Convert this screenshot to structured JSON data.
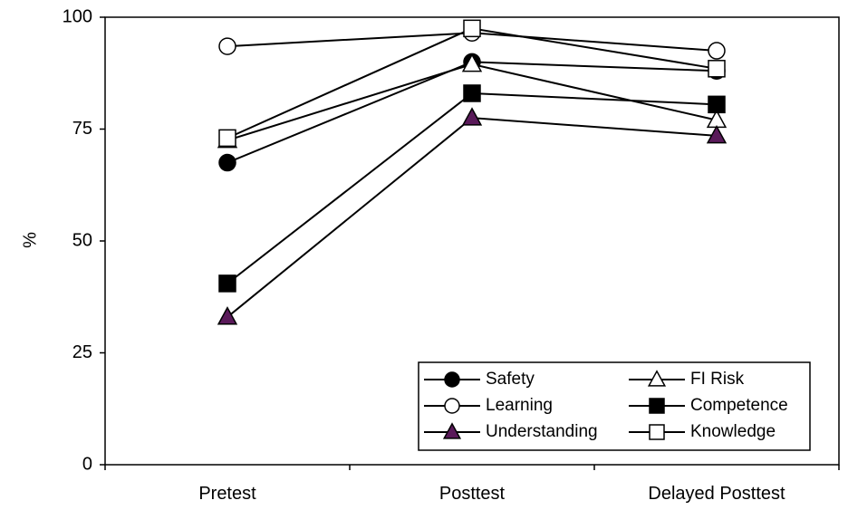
{
  "chart_data": {
    "type": "line",
    "categories": [
      "Pretest",
      "Posttest",
      "Delayed Posttest"
    ],
    "ylabel": "%",
    "xlabel": "",
    "ylim": [
      0,
      100
    ],
    "yticks": [
      0,
      25,
      50,
      75,
      100
    ],
    "grid": false,
    "legend_position": "bottom-right",
    "series": [
      {
        "name": "Safety",
        "marker": "circle",
        "fill": "#000000",
        "values": [
          67.5,
          90.0,
          88.0
        ]
      },
      {
        "name": "FI Risk",
        "marker": "triangle",
        "fill": "#ffffff",
        "values": [
          72.5,
          89.5,
          77.0
        ]
      },
      {
        "name": "Learning",
        "marker": "circle",
        "fill": "#ffffff",
        "values": [
          93.5,
          96.5,
          92.5
        ]
      },
      {
        "name": "Competence",
        "marker": "square",
        "fill": "#000000",
        "values": [
          40.5,
          83.0,
          80.5
        ]
      },
      {
        "name": "Understanding",
        "marker": "triangle",
        "fill": "#5a1a5a",
        "values": [
          33.0,
          77.5,
          73.5
        ]
      },
      {
        "name": "Knowledge",
        "marker": "square",
        "fill": "#ffffff",
        "values": [
          73.0,
          97.5,
          88.5
        ]
      }
    ]
  }
}
